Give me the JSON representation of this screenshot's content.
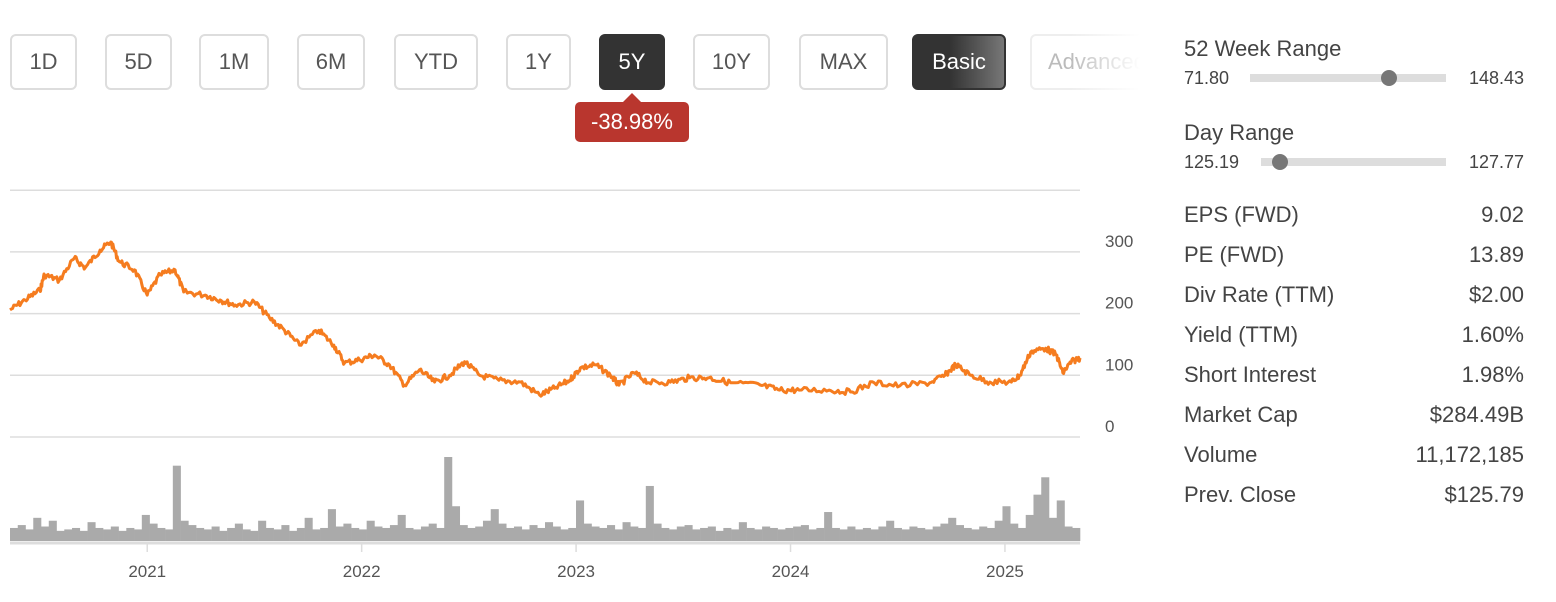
{
  "range_buttons": [
    {
      "label": "1D"
    },
    {
      "label": "5D"
    },
    {
      "label": "1M"
    },
    {
      "label": "6M"
    },
    {
      "label": "YTD"
    },
    {
      "label": "1Y"
    },
    {
      "label": "5Y",
      "active": true
    },
    {
      "label": "10Y"
    },
    {
      "label": "MAX"
    }
  ],
  "mode_buttons": {
    "basic": "Basic",
    "advanced": "Advanced"
  },
  "change_badge": "-38.98%",
  "colors": {
    "line": "#f57c1f",
    "volume": "#aaaaaa",
    "badge": "#b9362e",
    "grid": "#dddddd"
  },
  "chart_data": {
    "type": "line",
    "y_ticks": [
      "0",
      "100",
      "200",
      "300"
    ],
    "ylim": [
      0,
      400
    ],
    "x_ticks": [
      "2021",
      "2022",
      "2023",
      "2024",
      "2025"
    ],
    "xlim": [
      2020.36,
      2025.35
    ],
    "series": [
      {
        "name": "price",
        "points": [
          [
            2020.36,
            206
          ],
          [
            2020.43,
            222
          ],
          [
            2020.5,
            238
          ],
          [
            2020.52,
            263
          ],
          [
            2020.59,
            254
          ],
          [
            2020.66,
            290
          ],
          [
            2020.71,
            274
          ],
          [
            2020.78,
            303
          ],
          [
            2020.83,
            316
          ],
          [
            2020.87,
            284
          ],
          [
            2020.94,
            271
          ],
          [
            2021.0,
            230
          ],
          [
            2021.06,
            263
          ],
          [
            2021.13,
            271
          ],
          [
            2021.17,
            235
          ],
          [
            2021.27,
            230
          ],
          [
            2021.34,
            222
          ],
          [
            2021.41,
            214
          ],
          [
            2021.5,
            219
          ],
          [
            2021.57,
            193
          ],
          [
            2021.64,
            173
          ],
          [
            2021.71,
            149
          ],
          [
            2021.8,
            173
          ],
          [
            2021.87,
            149
          ],
          [
            2021.92,
            120
          ],
          [
            2021.99,
            125
          ],
          [
            2022.06,
            133
          ],
          [
            2022.13,
            117
          ],
          [
            2022.2,
            84
          ],
          [
            2022.27,
            109
          ],
          [
            2022.34,
            89
          ],
          [
            2022.41,
            100
          ],
          [
            2022.48,
            122
          ],
          [
            2022.55,
            100
          ],
          [
            2022.64,
            92
          ],
          [
            2022.74,
            89
          ],
          [
            2022.83,
            68
          ],
          [
            2022.9,
            79
          ],
          [
            2022.97,
            92
          ],
          [
            2023.02,
            112
          ],
          [
            2023.09,
            117
          ],
          [
            2023.16,
            100
          ],
          [
            2023.2,
            84
          ],
          [
            2023.27,
            104
          ],
          [
            2023.34,
            88
          ],
          [
            2023.44,
            89
          ],
          [
            2023.53,
            96
          ],
          [
            2023.62,
            96
          ],
          [
            2023.72,
            88
          ],
          [
            2023.86,
            84
          ],
          [
            2023.95,
            76
          ],
          [
            2024.04,
            76
          ],
          [
            2024.18,
            76
          ],
          [
            2024.28,
            73
          ],
          [
            2024.39,
            88
          ],
          [
            2024.51,
            83
          ],
          [
            2024.65,
            88
          ],
          [
            2024.72,
            100
          ],
          [
            2024.77,
            117
          ],
          [
            2024.84,
            100
          ],
          [
            2024.93,
            89
          ],
          [
            2025.03,
            89
          ],
          [
            2025.07,
            100
          ],
          [
            2025.12,
            138
          ],
          [
            2025.19,
            144
          ],
          [
            2025.24,
            133
          ],
          [
            2025.27,
            104
          ],
          [
            2025.31,
            122
          ],
          [
            2025.35,
            128
          ]
        ]
      }
    ],
    "volume": [
      9,
      11,
      8,
      16,
      10,
      14,
      7,
      8,
      9,
      7,
      13,
      9,
      8,
      10,
      7,
      9,
      8,
      18,
      12,
      9,
      8,
      52,
      14,
      11,
      9,
      8,
      10,
      7,
      9,
      12,
      8,
      7,
      14,
      9,
      8,
      11,
      7,
      9,
      16,
      8,
      9,
      22,
      10,
      12,
      9,
      8,
      14,
      10,
      9,
      11,
      18,
      9,
      8,
      10,
      12,
      9,
      58,
      24,
      11,
      9,
      10,
      14,
      22,
      12,
      9,
      10,
      8,
      11,
      9,
      13,
      10,
      8,
      9,
      28,
      12,
      10,
      9,
      11,
      8,
      13,
      10,
      9,
      38,
      12,
      9,
      8,
      10,
      11,
      8,
      9,
      10,
      7,
      9,
      8,
      13,
      9,
      8,
      10,
      9,
      8,
      9,
      10,
      11,
      8,
      9,
      20,
      9,
      8,
      10,
      8,
      9,
      8,
      10,
      14,
      9,
      8,
      10,
      9,
      8,
      10,
      12,
      16,
      11,
      9,
      8,
      10,
      9,
      14,
      24,
      12,
      9,
      18,
      32,
      44,
      16,
      28,
      10,
      9
    ]
  },
  "sidebar": {
    "week52": {
      "label": "52 Week Range",
      "min": "71.80",
      "max": "148.43",
      "position": 0.71
    },
    "day": {
      "label": "Day Range",
      "min": "125.19",
      "max": "127.77",
      "position": 0.1
    },
    "stats": [
      {
        "label": "EPS (FWD)",
        "value": "9.02"
      },
      {
        "label": "PE (FWD)",
        "value": "13.89"
      },
      {
        "label": "Div Rate (TTM)",
        "value": "$2.00"
      },
      {
        "label": "Yield (TTM)",
        "value": "1.60%"
      },
      {
        "label": "Short Interest",
        "value": "1.98%"
      },
      {
        "label": "Market Cap",
        "value": "$284.49B"
      },
      {
        "label": "Volume",
        "value": "11,172,185"
      },
      {
        "label": "Prev. Close",
        "value": "$125.79"
      }
    ]
  }
}
